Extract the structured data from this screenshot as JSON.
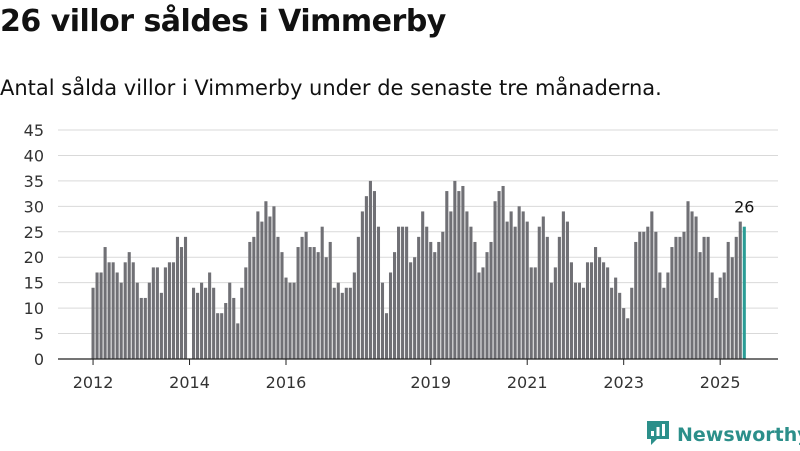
{
  "header": {
    "title": "26 villor såldes i Vimmerby",
    "subtitle": "Antal sålda villor i Vimmerby under de senaste tre månaderna."
  },
  "footer": {
    "brand": "Newsworthy"
  },
  "colors": {
    "bar": "#707075",
    "highlight": "#2a9d96",
    "grid": "#d9d9d9",
    "axis": "#222222",
    "brand": "#2c8f8a"
  },
  "icons": {
    "logo": "newsworthy-logo-icon"
  },
  "chart_data": {
    "type": "bar",
    "title": "",
    "xlabel": "",
    "ylabel": "",
    "ylim": [
      0,
      45
    ],
    "yticks": [
      0,
      5,
      10,
      15,
      20,
      25,
      30,
      35,
      40,
      45
    ],
    "grid": true,
    "x_start": "2012-01",
    "x_ticks": [
      {
        "label": "2012",
        "month": "2012-01"
      },
      {
        "label": "2014",
        "month": "2014-01"
      },
      {
        "label": "2016",
        "month": "2016-01"
      },
      {
        "label": "2019",
        "month": "2019-01"
      },
      {
        "label": "2021",
        "month": "2021-01"
      },
      {
        "label": "2023",
        "month": "2023-01"
      },
      {
        "label": "2025",
        "month": "2025-01"
      }
    ],
    "values": [
      14,
      17,
      17,
      22,
      19,
      19,
      17,
      15,
      19,
      21,
      19,
      15,
      12,
      12,
      15,
      18,
      18,
      13,
      18,
      19,
      19,
      24,
      22,
      24,
      0,
      14,
      13,
      15,
      14,
      17,
      14,
      9,
      9,
      11,
      15,
      12,
      7,
      14,
      18,
      23,
      24,
      29,
      27,
      31,
      28,
      30,
      24,
      21,
      16,
      15,
      15,
      22,
      24,
      25,
      22,
      22,
      21,
      26,
      20,
      23,
      14,
      15,
      13,
      14,
      14,
      17,
      24,
      29,
      32,
      35,
      33,
      26,
      15,
      9,
      17,
      21,
      26,
      26,
      26,
      19,
      20,
      24,
      29,
      26,
      23,
      21,
      23,
      25,
      33,
      29,
      35,
      33,
      34,
      29,
      26,
      23,
      17,
      18,
      21,
      23,
      31,
      33,
      34,
      27,
      29,
      26,
      30,
      29,
      27,
      18,
      18,
      26,
      28,
      24,
      15,
      18,
      24,
      29,
      27,
      19,
      15,
      15,
      14,
      19,
      19,
      22,
      20,
      19,
      18,
      14,
      16,
      13,
      10,
      8,
      14,
      23,
      25,
      25,
      26,
      29,
      25,
      17,
      14,
      17,
      22,
      24,
      24,
      25,
      31,
      29,
      28,
      21,
      24,
      24,
      17,
      12,
      16,
      17,
      23,
      20,
      24,
      27,
      26
    ],
    "highlight_last": true,
    "annotation": "26"
  }
}
